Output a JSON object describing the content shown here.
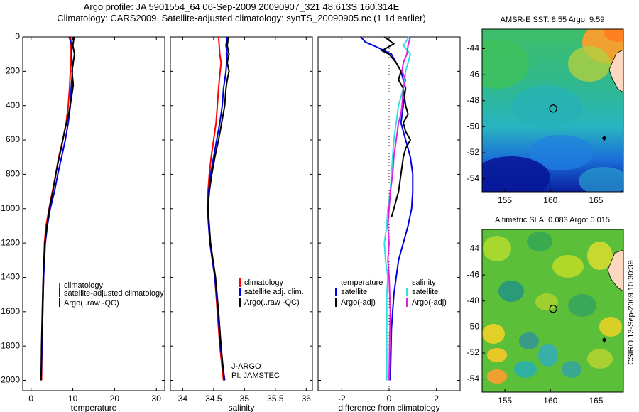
{
  "header": {
    "line1": "Argo profile: JA 5901554_64 06-Sep-2009 20090907_321 48.613S 160.314E",
    "line2": "Climatology: CARS2009. Satellite-adjusted climatology: synTS_20090905.nc (1.1d earlier)"
  },
  "colors": {
    "climatology": "#ff0000",
    "satellite": "#0000e0",
    "argo": "#000000",
    "sal_satellite": "#33dddd",
    "sal_argo": "#dd22dd"
  },
  "chart_data": [
    {
      "type": "line",
      "id": "temperature",
      "xlabel": "temperature",
      "ylabel": "",
      "xlim": [
        -2,
        32
      ],
      "ylim": [
        0,
        2060
      ],
      "y_inverted": true,
      "xticks": [
        0,
        10,
        20,
        30
      ],
      "yticks": [
        0,
        200,
        400,
        600,
        800,
        1000,
        1200,
        1400,
        1600,
        1800,
        2000
      ],
      "legend": {
        "placement": "center-right",
        "entries": [
          "climatology",
          "satellite-adjusted climatology",
          "Argo(..raw -QC)"
        ]
      },
      "series": [
        {
          "name": "climatology",
          "color": "climatology",
          "points": [
            [
              9.5,
              0
            ],
            [
              9.6,
              100
            ],
            [
              9.4,
              200
            ],
            [
              9.2,
              300
            ],
            [
              8.9,
              400
            ],
            [
              8.4,
              500
            ],
            [
              7.6,
              600
            ],
            [
              6.6,
              700
            ],
            [
              5.9,
              800
            ],
            [
              5.1,
              900
            ],
            [
              4.3,
              1000
            ],
            [
              3.6,
              1100
            ],
            [
              3.2,
              1200
            ],
            [
              3.0,
              1400
            ],
            [
              2.8,
              1600
            ],
            [
              2.6,
              1800
            ],
            [
              2.5,
              2000
            ]
          ]
        },
        {
          "name": "satellite-adjusted climatology",
          "color": "satellite",
          "points": [
            [
              9.1,
              0
            ],
            [
              9.8,
              50
            ],
            [
              9.7,
              100
            ],
            [
              9.9,
              200
            ],
            [
              9.6,
              300
            ],
            [
              9.4,
              400
            ],
            [
              8.9,
              500
            ],
            [
              8.2,
              600
            ],
            [
              7.3,
              700
            ],
            [
              6.4,
              800
            ],
            [
              5.6,
              900
            ],
            [
              4.6,
              1000
            ],
            [
              3.9,
              1100
            ],
            [
              3.4,
              1200
            ],
            [
              3.0,
              1400
            ],
            [
              2.8,
              1600
            ],
            [
              2.6,
              1800
            ],
            [
              2.4,
              2000
            ]
          ]
        },
        {
          "name": "Argo(..raw -QC)",
          "color": "argo",
          "points": [
            [
              10.3,
              0
            ],
            [
              10.0,
              50
            ],
            [
              10.4,
              100
            ],
            [
              9.8,
              200
            ],
            [
              10.1,
              280
            ],
            [
              9.7,
              350
            ],
            [
              9.0,
              450
            ],
            [
              8.0,
              550
            ],
            [
              7.2,
              650
            ],
            [
              6.3,
              750
            ],
            [
              5.7,
              830
            ],
            [
              5.2,
              900
            ],
            [
              4.4,
              1000
            ],
            [
              3.8,
              1100
            ],
            [
              3.3,
              1200
            ],
            [
              2.9,
              1400
            ],
            [
              2.7,
              1600
            ],
            [
              2.5,
              1800
            ],
            [
              2.4,
              2000
            ]
          ]
        }
      ]
    },
    {
      "type": "line",
      "id": "salinity",
      "xlabel": "salinity",
      "ylabel": "",
      "xlim": [
        33.8,
        36.1
      ],
      "ylim": [
        0,
        2060
      ],
      "y_inverted": true,
      "xticks": [
        34,
        34.5,
        35,
        35.5,
        36
      ],
      "legend": {
        "placement": "center-right",
        "entries": [
          "climatology",
          "satellite adj. clim.",
          "Argo(..raw -QC)"
        ]
      },
      "annotation": [
        "J-ARGO",
        "PI: JAMSTEC"
      ],
      "series": [
        {
          "name": "climatology",
          "color": "climatology",
          "points": [
            [
              34.58,
              0
            ],
            [
              34.6,
              100
            ],
            [
              34.62,
              150
            ],
            [
              34.6,
              220
            ],
            [
              34.58,
              300
            ],
            [
              34.56,
              400
            ],
            [
              34.54,
              500
            ],
            [
              34.5,
              600
            ],
            [
              34.46,
              700
            ],
            [
              34.43,
              800
            ],
            [
              34.41,
              900
            ],
            [
              34.4,
              1000
            ],
            [
              34.42,
              1100
            ],
            [
              34.44,
              1200
            ],
            [
              34.48,
              1300
            ],
            [
              34.52,
              1400
            ],
            [
              34.56,
              1600
            ],
            [
              34.6,
              1800
            ],
            [
              34.66,
              2000
            ]
          ]
        },
        {
          "name": "satellite adj. clim.",
          "color": "satellite",
          "points": [
            [
              34.72,
              0
            ],
            [
              34.7,
              50
            ],
            [
              34.72,
              100
            ],
            [
              34.7,
              200
            ],
            [
              34.66,
              300
            ],
            [
              34.64,
              400
            ],
            [
              34.6,
              500
            ],
            [
              34.55,
              600
            ],
            [
              34.5,
              700
            ],
            [
              34.45,
              800
            ],
            [
              34.42,
              900
            ],
            [
              34.4,
              1000
            ],
            [
              34.42,
              1100
            ],
            [
              34.44,
              1200
            ],
            [
              34.48,
              1300
            ],
            [
              34.52,
              1400
            ],
            [
              34.57,
              1600
            ],
            [
              34.61,
              1800
            ],
            [
              34.68,
              2000
            ]
          ]
        },
        {
          "name": "Argo(..raw -QC)",
          "color": "argo",
          "points": [
            [
              34.74,
              0
            ],
            [
              34.72,
              50
            ],
            [
              34.75,
              100
            ],
            [
              34.72,
              150
            ],
            [
              34.75,
              200
            ],
            [
              34.72,
              250
            ],
            [
              34.7,
              300
            ],
            [
              34.68,
              400
            ],
            [
              34.63,
              500
            ],
            [
              34.58,
              600
            ],
            [
              34.52,
              700
            ],
            [
              34.47,
              800
            ],
            [
              34.43,
              900
            ],
            [
              34.41,
              1000
            ],
            [
              34.43,
              1100
            ],
            [
              34.45,
              1200
            ],
            [
              34.49,
              1300
            ],
            [
              34.53,
              1400
            ],
            [
              34.58,
              1600
            ],
            [
              34.62,
              1800
            ],
            [
              34.67,
              2000
            ]
          ]
        }
      ]
    },
    {
      "type": "line",
      "id": "difference",
      "xlabel": "difference from climatology",
      "ylabel": "",
      "xlim": [
        -3,
        3
      ],
      "ylim": [
        0,
        2060
      ],
      "y_inverted": true,
      "xticks": [
        -2,
        0,
        2
      ],
      "legend": {
        "placement": "center",
        "entries": [
          "temperature",
          "satellite",
          "Argo(-adj)",
          "salinity",
          "satellite",
          "Argo(-adj)"
        ]
      },
      "series": [
        {
          "name": "temperature satellite",
          "color": "satellite",
          "points": [
            [
              -1.2,
              0
            ],
            [
              -1.0,
              30
            ],
            [
              -0.5,
              60
            ],
            [
              0.1,
              100
            ],
            [
              0.5,
              200
            ],
            [
              0.7,
              300
            ],
            [
              0.6,
              400
            ],
            [
              0.5,
              500
            ],
            [
              0.7,
              600
            ],
            [
              0.9,
              700
            ],
            [
              1.0,
              800
            ],
            [
              1.0,
              900
            ],
            [
              0.95,
              1000
            ],
            [
              0.8,
              1100
            ],
            [
              0.6,
              1200
            ],
            [
              0.4,
              1300
            ],
            [
              0.3,
              1400
            ],
            [
              0.2,
              1500
            ],
            [
              0.1,
              1700
            ],
            [
              0.05,
              2000
            ]
          ]
        },
        {
          "name": "temperature Argo(-adj)",
          "color": "argo",
          "points": [
            [
              -0.2,
              0
            ],
            [
              0.2,
              40
            ],
            [
              -0.3,
              80
            ],
            [
              0.0,
              100
            ],
            [
              0.3,
              150
            ],
            [
              0.5,
              200
            ],
            [
              0.4,
              250
            ],
            [
              0.6,
              300
            ],
            [
              0.7,
              400
            ],
            [
              0.8,
              450
            ],
            [
              0.6,
              500
            ],
            [
              0.7,
              550
            ],
            [
              0.9,
              600
            ],
            [
              0.7,
              650
            ],
            [
              0.6,
              700
            ],
            [
              0.5,
              800
            ],
            [
              0.4,
              900
            ],
            [
              0.2,
              1000
            ],
            [
              0.1,
              1050
            ]
          ]
        },
        {
          "name": "salinity satellite",
          "color": "sal_satellite",
          "points": [
            [
              0.85,
              0
            ],
            [
              0.6,
              50
            ],
            [
              0.9,
              100
            ],
            [
              0.7,
              200
            ],
            [
              0.6,
              300
            ],
            [
              0.4,
              400
            ],
            [
              0.3,
              500
            ],
            [
              0.2,
              600
            ],
            [
              0.15,
              700
            ],
            [
              0.1,
              800
            ],
            [
              0.05,
              900
            ],
            [
              -0.05,
              1000
            ],
            [
              -0.1,
              1100
            ],
            [
              -0.2,
              1200
            ],
            [
              -0.15,
              1300
            ],
            [
              -0.05,
              1400
            ],
            [
              -0.1,
              1500
            ],
            [
              -0.1,
              1700
            ],
            [
              -0.1,
              2000
            ]
          ]
        },
        {
          "name": "salinity Argo(-adj)",
          "color": "sal_argo",
          "points": [
            [
              0.9,
              0
            ],
            [
              0.8,
              50
            ],
            [
              0.75,
              100
            ],
            [
              0.6,
              150
            ],
            [
              0.55,
              200
            ],
            [
              0.7,
              250
            ],
            [
              0.6,
              300
            ],
            [
              0.55,
              400
            ],
            [
              0.5,
              450
            ],
            [
              0.4,
              500
            ],
            [
              0.3,
              600
            ],
            [
              0.2,
              700
            ],
            [
              0.15,
              800
            ],
            [
              0.05,
              900
            ],
            [
              0.0,
              1000
            ],
            [
              -0.05,
              1100
            ],
            [
              0.0,
              1200
            ],
            [
              -0.05,
              1300
            ],
            [
              0.0,
              1400
            ],
            [
              0.05,
              1600
            ],
            [
              0.02,
              1800
            ],
            [
              0.0,
              2000
            ]
          ]
        }
      ]
    },
    {
      "type": "heatmap",
      "id": "sst_map",
      "title": "AMSR-E SST: 8.55 Argo: 9.59",
      "xlim": [
        152.5,
        168
      ],
      "ylim": [
        -55,
        -42.5
      ],
      "xticks": [
        155,
        160,
        165
      ],
      "yticks": [
        -44,
        -46,
        -48,
        -50,
        -52,
        -54
      ],
      "marker": {
        "lon": 160.3,
        "lat": -48.6
      }
    },
    {
      "type": "heatmap",
      "id": "sla_map",
      "title": "Altimetric SLA: 0.083 Argo: 0.015",
      "xlim": [
        152.5,
        168
      ],
      "ylim": [
        -55,
        -42.5
      ],
      "xticks": [
        155,
        160,
        165
      ],
      "yticks": [
        -44,
        -46,
        -48,
        -50,
        -52,
        -54
      ],
      "marker": {
        "lon": 160.3,
        "lat": -48.6
      }
    }
  ],
  "footer": {
    "stamp": "CSIRO 13-Sep-2009 10:30:39"
  }
}
